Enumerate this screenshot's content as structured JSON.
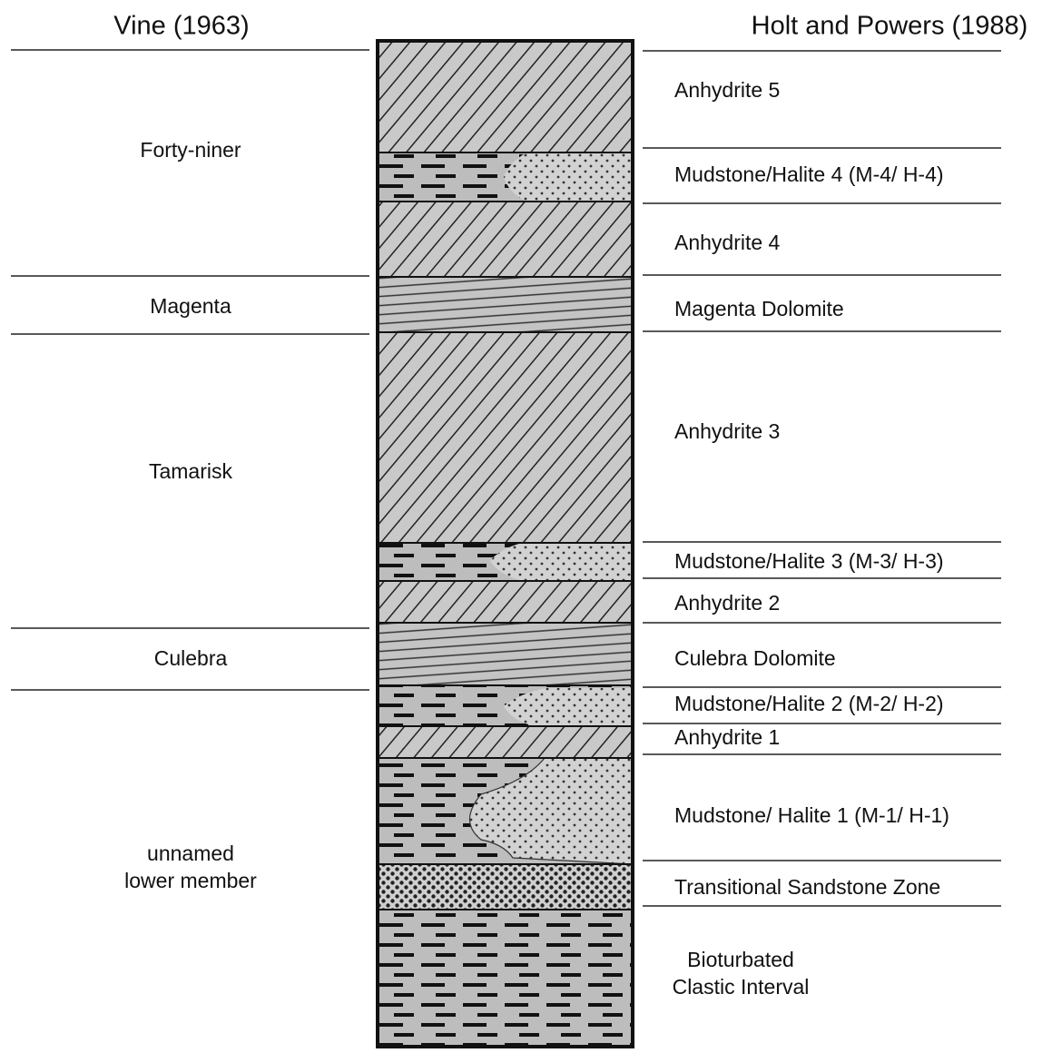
{
  "header": {
    "left": "Vine (1963)",
    "right": "Holt and Powers (1988)"
  },
  "left_units": [
    "Forty-niner",
    "Magenta",
    "Tamarisk",
    "Culebra",
    [
      "unnamed",
      "lower member"
    ]
  ],
  "right_units": [
    "Anhydrite 5",
    "Mudstone/Halite 4 (M-4/ H-4)",
    "Anhydrite 4",
    "Magenta Dolomite",
    "Anhydrite 3",
    "Mudstone/Halite 3 (M-3/  H-3)",
    "Anhydrite 2",
    "Culebra Dolomite",
    "Mudstone/Halite 2 (M-2/ H-2)",
    "Anhydrite 1",
    "Mudstone/ Halite 1 (M-1/ H-1)",
    "Transitional Sandstone Zone",
    [
      "Bioturbated",
      "Clastic Interval"
    ]
  ]
}
